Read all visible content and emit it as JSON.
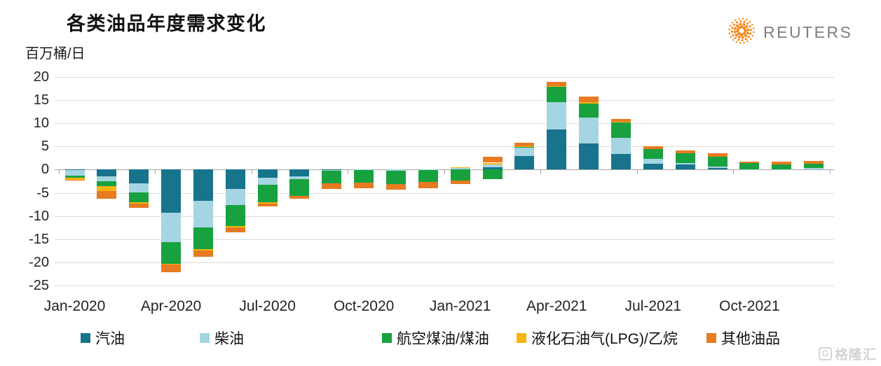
{
  "header": {
    "title": "各类油品年度需求变化",
    "unit_label": "百万桶/日",
    "brand": "REUTERS"
  },
  "watermark": {
    "icon_letter": "G",
    "text": "格隆汇"
  },
  "colors": {
    "reuters_orange": "#f68b1f",
    "reuters_gray": "#7f7f7f",
    "gridline": "#dcdcdc",
    "zero_axis": "#a6a6a6",
    "watermark_gray": "#d4d4d4"
  },
  "chart_data": {
    "type": "bar",
    "stacked": true,
    "title": "各类油品年度需求变化",
    "ylabel": "百万桶/日",
    "ylim": [
      -25,
      20
    ],
    "ytick_step": 5,
    "grid": true,
    "legend_position": "bottom",
    "x_tick_every": 3,
    "x": [
      "Jan-2020",
      "Feb-2020",
      "Mar-2020",
      "Apr-2020",
      "May-2020",
      "Jun-2020",
      "Jul-2020",
      "Aug-2020",
      "Sep-2020",
      "Oct-2020",
      "Nov-2020",
      "Dec-2020",
      "Jan-2021",
      "Feb-2021",
      "Mar-2021",
      "Apr-2021",
      "May-2021",
      "Jun-2021",
      "Jul-2021",
      "Aug-2021",
      "Sep-2021",
      "Oct-2021",
      "Nov-2021",
      "Dec-2021"
    ],
    "x_tick_labels": [
      "Jan-2020",
      "Apr-2020",
      "Jul-2020",
      "Oct-2020",
      "Jan-2021",
      "Apr-2021",
      "Jul-2021",
      "Oct-2021"
    ],
    "series": [
      {
        "name": "汽油",
        "color": "#17748c",
        "values": [
          -0.1,
          -1.4,
          -2.9,
          -9.3,
          -6.7,
          -4.2,
          -1.7,
          -1.5,
          -0.1,
          0,
          0,
          0,
          0,
          0.5,
          2.9,
          8.6,
          5.7,
          3.4,
          1.2,
          1.1,
          0.3,
          0,
          0,
          0
        ]
      },
      {
        "name": "柴油",
        "color": "#a6d5e2",
        "values": [
          -1.2,
          -1.1,
          -2.0,
          -6.3,
          -5.8,
          -3.4,
          -1.5,
          -0.5,
          -0.2,
          -0.1,
          -0.2,
          -0.15,
          0.4,
          0.6,
          1.8,
          6.0,
          5.6,
          3.5,
          1.2,
          0.4,
          0.4,
          0.1,
          0.1,
          0.35
        ]
      },
      {
        "name": "航空煤油/煤油",
        "color": "#17a23f",
        "values": [
          -0.45,
          -1.0,
          -2.2,
          -4.7,
          -4.7,
          -4.6,
          -3.9,
          -3.6,
          -2.7,
          -2.7,
          -2.9,
          -2.5,
          -2.4,
          -2.1,
          0.2,
          3.3,
          3.0,
          3.3,
          2.1,
          2.1,
          2.1,
          1.3,
          1.0,
          0.9
        ]
      },
      {
        "name": "液化石油气(LPG)/乙烷",
        "color": "#f6b40e",
        "values": [
          -0.45,
          -1.1,
          -0.2,
          -0.2,
          -0.2,
          -0.2,
          -0.2,
          0,
          0,
          0,
          0,
          0,
          0.1,
          0.4,
          0.1,
          0.1,
          0.2,
          0.1,
          0,
          0,
          0,
          0,
          0,
          0
        ]
      },
      {
        "name": "其他油品",
        "color": "#e87a22",
        "values": [
          -0.2,
          -1.6,
          -1.0,
          -1.7,
          -1.4,
          -1.2,
          -0.6,
          -0.7,
          -1.2,
          -1.2,
          -1.2,
          -1.3,
          -0.7,
          1.3,
          0.8,
          0.9,
          1.2,
          0.7,
          0.5,
          0.6,
          0.7,
          0.35,
          0.65,
          0.7
        ]
      }
    ]
  }
}
